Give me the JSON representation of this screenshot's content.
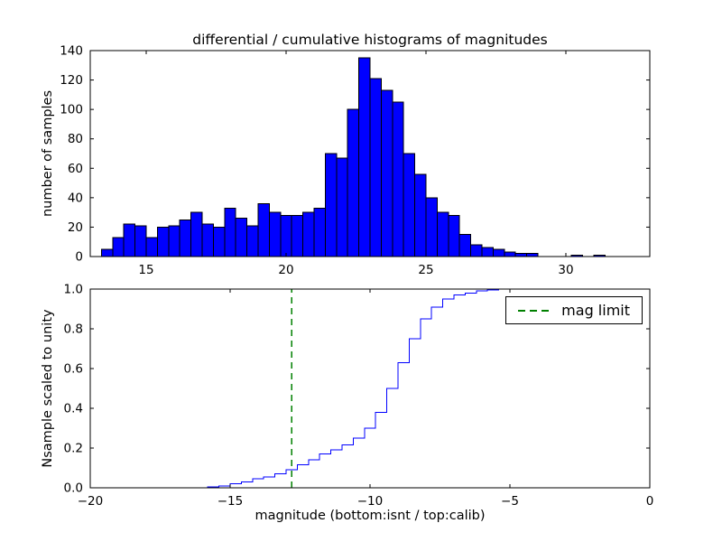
{
  "figure": {
    "title": "differential / cumulative histograms of magnitudes",
    "background": "#ffffff"
  },
  "chart_data": [
    {
      "type": "bar",
      "name": "differential-histogram",
      "title": "differential / cumulative histograms of magnitudes",
      "xlabel": "",
      "ylabel": "number of samples",
      "xlim": [
        13,
        33
      ],
      "ylim": [
        0,
        140
      ],
      "xtick_values": [
        15,
        20,
        25,
        30
      ],
      "xtick_labels": [
        "15",
        "20",
        "25",
        "30"
      ],
      "ytick_values": [
        0,
        20,
        40,
        60,
        80,
        100,
        120,
        140
      ],
      "ytick_labels": [
        "0",
        "20",
        "40",
        "60",
        "80",
        "100",
        "120",
        "140"
      ],
      "bin_start": 13.4,
      "bin_width": 0.4,
      "counts": [
        5,
        13,
        22,
        21,
        13,
        20,
        21,
        25,
        30,
        22,
        20,
        33,
        26,
        21,
        36,
        30,
        28,
        28,
        30,
        33,
        70,
        67,
        100,
        135,
        121,
        113,
        105,
        70,
        56,
        40,
        30,
        28,
        15,
        8,
        6,
        5,
        3,
        2,
        2,
        0,
        0,
        0,
        1,
        0,
        1
      ],
      "bar_color": "#0000ff",
      "bar_edge_color": "#000000",
      "grid": false
    },
    {
      "type": "line",
      "name": "cumulative-histogram",
      "xlabel": "magnitude (bottom:isnt / top:calib)",
      "ylabel": "Nsample scaled to unity",
      "xlim": [
        -20,
        0
      ],
      "ylim": [
        0.0,
        1.0
      ],
      "xtick_values": [
        -20,
        -15,
        -10,
        -5,
        0
      ],
      "xtick_labels": [
        "−20",
        "−15",
        "−10",
        "−5",
        "0"
      ],
      "ytick_values": [
        0,
        0.2,
        0.4,
        0.6,
        0.8,
        1
      ],
      "ytick_labels": [
        "0.0",
        "0.2",
        "0.4",
        "0.6",
        "0.8",
        "1.0"
      ],
      "line_color": "#0000ff",
      "step": true,
      "points": {
        "x": [
          -20.0,
          -16.2,
          -15.8,
          -15.4,
          -15.0,
          -14.6,
          -14.2,
          -13.8,
          -13.4,
          -13.0,
          -12.6,
          -12.2,
          -11.8,
          -11.4,
          -11.0,
          -10.6,
          -10.2,
          -9.8,
          -9.4,
          -9.0,
          -8.6,
          -8.2,
          -7.8,
          -7.4,
          -7.0,
          -6.6,
          -6.2,
          -5.8,
          -5.4,
          0.0
        ],
        "y": [
          0.0,
          0.0,
          0.005,
          0.01,
          0.02,
          0.03,
          0.045,
          0.055,
          0.07,
          0.09,
          0.115,
          0.14,
          0.17,
          0.19,
          0.215,
          0.25,
          0.3,
          0.38,
          0.5,
          0.63,
          0.75,
          0.85,
          0.91,
          0.95,
          0.97,
          0.98,
          0.99,
          0.995,
          1.0,
          1.0
        ]
      },
      "vline": {
        "x": -12.8,
        "color": "#008000",
        "dash": true,
        "label": "mag limit"
      },
      "legend": {
        "location": "upper right",
        "entries": [
          {
            "label": "mag limit",
            "color": "#008000",
            "dash": true
          }
        ]
      },
      "grid": false
    }
  ]
}
